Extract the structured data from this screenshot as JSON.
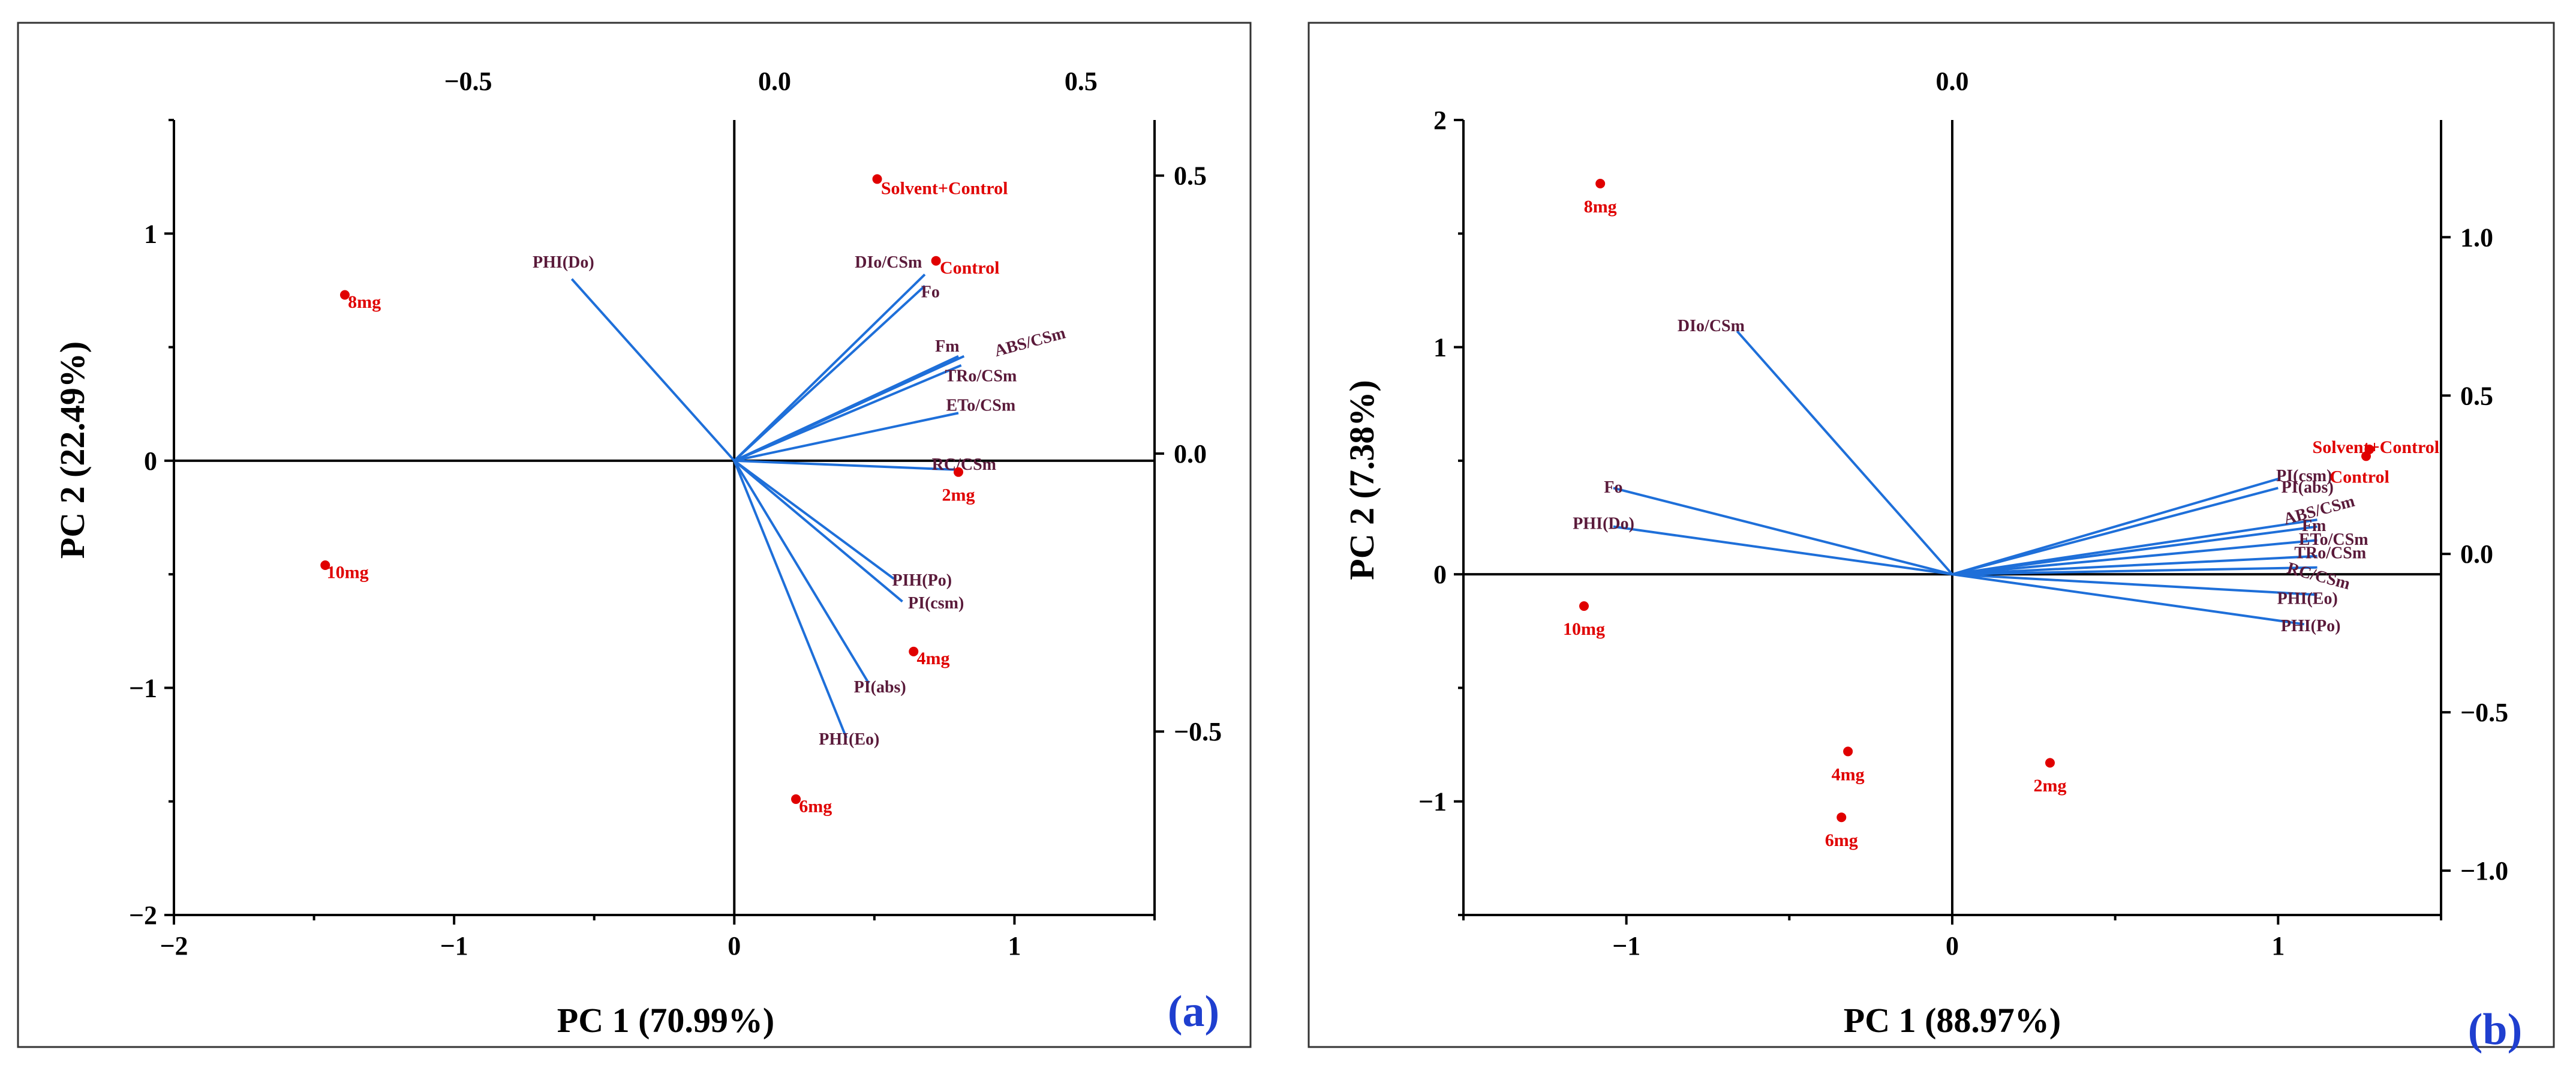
{
  "chart_data": [
    {
      "type": "scatter",
      "subtype": "biplot",
      "panel_label": "(a)",
      "xlabel": "PC 1 (70.99%)",
      "ylabel": "PC 2 (22.49%)",
      "xlim": [
        -2,
        1.5
      ],
      "ylim": [
        -2,
        1.5
      ],
      "x_ticks": [
        -2,
        -1,
        0,
        1
      ],
      "y_ticks": [
        -2,
        -1,
        0,
        1
      ],
      "top_axis": {
        "lim": [
          -0.98,
          0.62
        ],
        "ticks": [
          -0.5,
          0.0,
          0.5
        ]
      },
      "right_axis": {
        "lim": [
          -0.83,
          0.6
        ],
        "ticks": [
          -0.5,
          0.0,
          0.5
        ]
      },
      "loadings": [
        {
          "name": "PHI(Do)",
          "x": -0.58,
          "y": 0.8,
          "lx": -0.61,
          "ly": 0.85,
          "anchor": "middle"
        },
        {
          "name": "DIo/CSm",
          "x": 0.68,
          "y": 0.82,
          "lx": 0.67,
          "ly": 0.85,
          "anchor": "end"
        },
        {
          "name": "Fo",
          "x": 0.68,
          "y": 0.77,
          "lx": 0.7,
          "ly": 0.72,
          "anchor": "middle"
        },
        {
          "name": "Fm",
          "x": 0.8,
          "y": 0.46,
          "lx": 0.76,
          "ly": 0.48,
          "anchor": "middle"
        },
        {
          "name": "ABS/CSm",
          "x": 0.82,
          "y": 0.46,
          "lx": 1.06,
          "ly": 0.5,
          "anchor": "middle",
          "rotate": -15
        },
        {
          "name": "TRo/CSm",
          "x": 0.81,
          "y": 0.42,
          "lx": 0.88,
          "ly": 0.35,
          "anchor": "middle"
        },
        {
          "name": "ETo/CSm",
          "x": 0.8,
          "y": 0.21,
          "lx": 0.88,
          "ly": 0.22,
          "anchor": "middle"
        },
        {
          "name": "RC/CSm",
          "x": 0.8,
          "y": -0.04,
          "lx": 0.82,
          "ly": -0.04,
          "anchor": "middle"
        },
        {
          "name": "PIH(Po)",
          "x": 0.57,
          "y": -0.52,
          "lx": 0.67,
          "ly": -0.55,
          "anchor": "middle"
        },
        {
          "name": "PI(csm)",
          "x": 0.6,
          "y": -0.62,
          "lx": 0.72,
          "ly": -0.65,
          "anchor": "middle"
        },
        {
          "name": "PI(abs)",
          "x": 0.48,
          "y": -0.98,
          "lx": 0.52,
          "ly": -1.02,
          "anchor": "middle"
        },
        {
          "name": "PHI(Eo)",
          "x": 0.4,
          "y": -1.22,
          "lx": 0.41,
          "ly": -1.25,
          "anchor": "middle"
        }
      ],
      "scores": [
        {
          "name": "Solvent+Control",
          "x": 0.51,
          "y": 1.24,
          "lx": 0.75,
          "ly": 1.2,
          "anchor": "middle"
        },
        {
          "name": "Control",
          "x": 0.72,
          "y": 0.88,
          "lx": 0.84,
          "ly": 0.85,
          "anchor": "middle"
        },
        {
          "name": "8mg",
          "x": -1.39,
          "y": 0.73,
          "lx": -1.32,
          "ly": 0.7,
          "anchor": "middle"
        },
        {
          "name": "2mg",
          "x": 0.8,
          "y": -0.05,
          "lx": 0.8,
          "ly": -0.15,
          "anchor": "middle"
        },
        {
          "name": "10mg",
          "x": -1.46,
          "y": -0.46,
          "lx": -1.38,
          "ly": -0.49,
          "anchor": "middle"
        },
        {
          "name": "4mg",
          "x": 0.64,
          "y": -0.84,
          "lx": 0.71,
          "ly": -0.87,
          "anchor": "middle"
        },
        {
          "name": "6mg",
          "x": 0.22,
          "y": -1.49,
          "lx": 0.29,
          "ly": -1.52,
          "anchor": "middle"
        }
      ]
    },
    {
      "type": "scatter",
      "subtype": "biplot",
      "panel_label": "(b)",
      "xlabel": "PC 1 (88.97%)",
      "ylabel": "PC 2 (7.38%)",
      "xlim": [
        -1.5,
        1.5
      ],
      "ylim": [
        -1.5,
        2
      ],
      "x_ticks": [
        -1,
        0,
        1
      ],
      "y_ticks": [
        -1,
        0,
        1,
        2
      ],
      "top_axis": {
        "lim": [
          -0.5,
          0.5
        ],
        "ticks": [
          0.0
        ]
      },
      "right_axis": {
        "lim": [
          -1.14,
          1.37
        ],
        "ticks": [
          -1.0,
          -0.5,
          0.0,
          0.5,
          1.0
        ]
      },
      "loadings": [
        {
          "name": "DIo/CSm",
          "x": -0.66,
          "y": 1.07,
          "lx": -0.74,
          "ly": 1.07,
          "anchor": "middle"
        },
        {
          "name": "Fo",
          "x": -1.04,
          "y": 0.38,
          "lx": -1.04,
          "ly": 0.36,
          "anchor": "middle"
        },
        {
          "name": "PHI(Do)",
          "x": -1.04,
          "y": 0.21,
          "lx": -1.07,
          "ly": 0.2,
          "anchor": "middle"
        },
        {
          "name": "PI(csm)",
          "x": 1.0,
          "y": 0.42,
          "lx": 1.08,
          "ly": 0.41,
          "anchor": "middle"
        },
        {
          "name": "PI(abs)",
          "x": 1.0,
          "y": 0.38,
          "lx": 1.09,
          "ly": 0.36,
          "anchor": "middle"
        },
        {
          "name": "ABS/CSm",
          "x": 1.12,
          "y": 0.24,
          "lx": 1.13,
          "ly": 0.26,
          "anchor": "middle",
          "rotate": -15
        },
        {
          "name": "Fm",
          "x": 1.12,
          "y": 0.21,
          "lx": 1.11,
          "ly": 0.19,
          "anchor": "middle"
        },
        {
          "name": "ETo/CSm",
          "x": 1.12,
          "y": 0.15,
          "lx": 1.17,
          "ly": 0.13,
          "anchor": "middle"
        },
        {
          "name": "TRo/CSm",
          "x": 1.12,
          "y": 0.08,
          "lx": 1.16,
          "ly": 0.07,
          "anchor": "middle"
        },
        {
          "name": "RC/CSm",
          "x": 1.12,
          "y": 0.03,
          "lx": 1.12,
          "ly": -0.03,
          "anchor": "middle",
          "rotate": 15
        },
        {
          "name": "PHI(Eo)",
          "x": 1.12,
          "y": -0.09,
          "lx": 1.09,
          "ly": -0.13,
          "anchor": "middle"
        },
        {
          "name": "PHI(Po)",
          "x": 1.08,
          "y": -0.22,
          "lx": 1.1,
          "ly": -0.25,
          "anchor": "middle"
        }
      ],
      "scores": [
        {
          "name": "Solvent+Control",
          "x": 1.28,
          "y": 0.55,
          "lx": 1.3,
          "ly": 0.56,
          "anchor": "middle"
        },
        {
          "name": "Control",
          "x": 1.27,
          "y": 0.52,
          "lx": 1.25,
          "ly": 0.43,
          "anchor": "middle"
        },
        {
          "name": "8mg",
          "x": -1.08,
          "y": 1.72,
          "lx": -1.08,
          "ly": 1.62,
          "anchor": "middle"
        },
        {
          "name": "10mg",
          "x": -1.13,
          "y": -0.14,
          "lx": -1.13,
          "ly": -0.24,
          "anchor": "middle"
        },
        {
          "name": "4mg",
          "x": -0.32,
          "y": -0.78,
          "lx": -0.32,
          "ly": -0.88,
          "anchor": "middle"
        },
        {
          "name": "6mg",
          "x": -0.34,
          "y": -1.07,
          "lx": -0.34,
          "ly": -1.17,
          "anchor": "middle"
        },
        {
          "name": "2mg",
          "x": 0.3,
          "y": -0.83,
          "lx": 0.3,
          "ly": -0.93,
          "anchor": "middle"
        }
      ]
    }
  ]
}
